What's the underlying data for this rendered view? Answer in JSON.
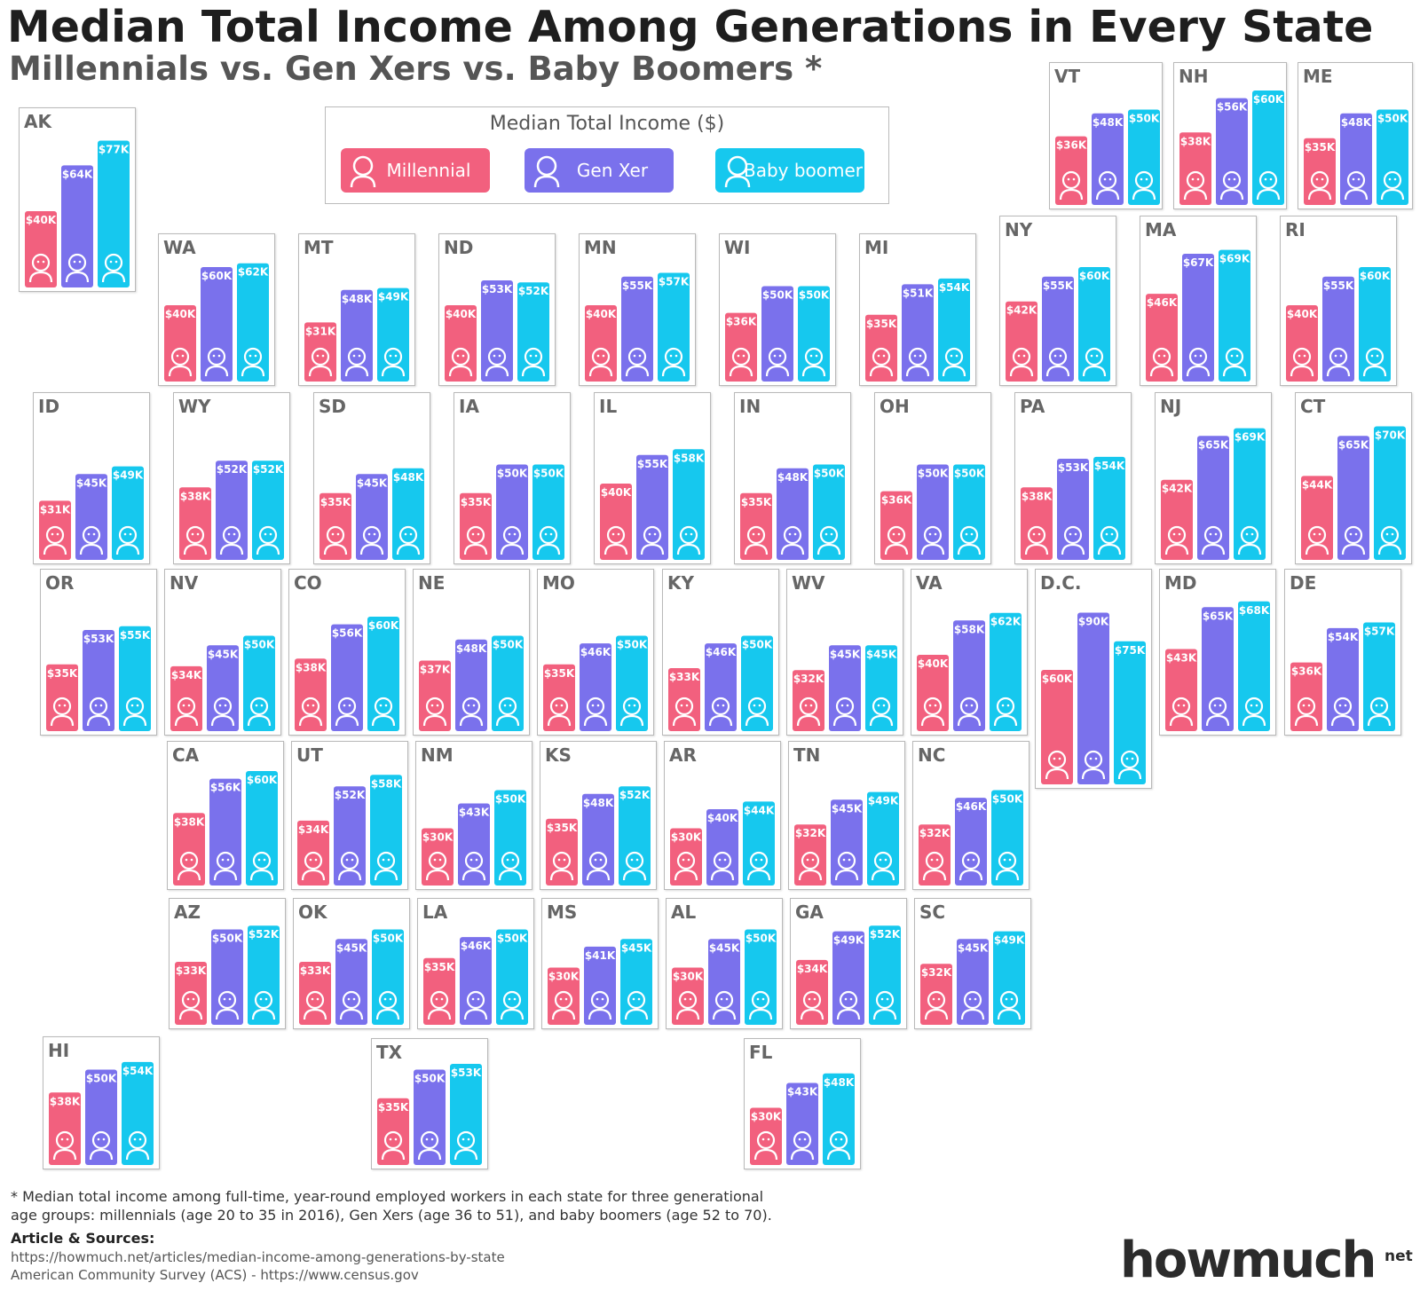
{
  "header": {
    "title": "Median Total Income Among Generations in Every State",
    "subtitle": "Millennials vs. Gen Xers vs. Baby Boomers *"
  },
  "legend": {
    "title": "Median Total Income ($)",
    "millennial": "Millennial",
    "genx": "Gen Xer",
    "boomer": "Baby boomer"
  },
  "colors": {
    "millennial": "#f2607e",
    "genx": "#7a71ec",
    "boomer": "#16c8ee",
    "tile_label": "#666666"
  },
  "chart_data": {
    "type": "bar",
    "title": "Median Total Income Among Generations in Every State",
    "subtitle": "Millennials vs. Gen Xers vs. Baby Boomers *",
    "series_names": [
      "Millennial",
      "Gen Xer",
      "Baby boomer"
    ],
    "unit": "$K",
    "grid": false,
    "legend_placement": "top",
    "states": [
      {
        "state": "AK",
        "values": [
          40,
          64,
          77
        ],
        "labels": [
          "$40K",
          "$64K",
          "$77K"
        ]
      },
      {
        "state": "VT",
        "values": [
          36,
          48,
          50
        ],
        "labels": [
          "$36K",
          "$48K",
          "$50K"
        ]
      },
      {
        "state": "NH",
        "values": [
          38,
          56,
          60
        ],
        "labels": [
          "$38K",
          "$56K",
          "$60K"
        ]
      },
      {
        "state": "ME",
        "values": [
          35,
          48,
          50
        ],
        "labels": [
          "$35K",
          "$48K",
          "$50K"
        ]
      },
      {
        "state": "WA",
        "values": [
          40,
          60,
          62
        ],
        "labels": [
          "$40K",
          "$60K",
          "$62K"
        ]
      },
      {
        "state": "MT",
        "values": [
          31,
          48,
          49
        ],
        "labels": [
          "$31K",
          "$48K",
          "$49K"
        ]
      },
      {
        "state": "ND",
        "values": [
          40,
          53,
          52
        ],
        "labels": [
          "$40K",
          "$53K",
          "$52K"
        ]
      },
      {
        "state": "MN",
        "values": [
          40,
          55,
          57
        ],
        "labels": [
          "$40K",
          "$55K",
          "$57K"
        ]
      },
      {
        "state": "WI",
        "values": [
          36,
          50,
          50
        ],
        "labels": [
          "$36K",
          "$50K",
          "$50K"
        ]
      },
      {
        "state": "MI",
        "values": [
          35,
          51,
          54
        ],
        "labels": [
          "$35K",
          "$51K",
          "$54K"
        ]
      },
      {
        "state": "NY",
        "values": [
          42,
          55,
          60
        ],
        "labels": [
          "$42K",
          "$55K",
          "$60K"
        ]
      },
      {
        "state": "MA",
        "values": [
          46,
          67,
          69
        ],
        "labels": [
          "$46K",
          "$67K",
          "$69K"
        ]
      },
      {
        "state": "RI",
        "values": [
          40,
          55,
          60
        ],
        "labels": [
          "$40K",
          "$55K",
          "$60K"
        ]
      },
      {
        "state": "ID",
        "values": [
          31,
          45,
          49
        ],
        "labels": [
          "$31K",
          "$45K",
          "$49K"
        ]
      },
      {
        "state": "WY",
        "values": [
          38,
          52,
          52
        ],
        "labels": [
          "$38K",
          "$52K",
          "$52K"
        ]
      },
      {
        "state": "SD",
        "values": [
          35,
          45,
          48
        ],
        "labels": [
          "$35K",
          "$45K",
          "$48K"
        ]
      },
      {
        "state": "IA",
        "values": [
          35,
          50,
          50
        ],
        "labels": [
          "$35K",
          "$50K",
          "$50K"
        ]
      },
      {
        "state": "IL",
        "values": [
          40,
          55,
          58
        ],
        "labels": [
          "$40K",
          "$55K",
          "$58K"
        ]
      },
      {
        "state": "IN",
        "values": [
          35,
          48,
          50
        ],
        "labels": [
          "$35K",
          "$48K",
          "$50K"
        ]
      },
      {
        "state": "OH",
        "values": [
          36,
          50,
          50
        ],
        "labels": [
          "$36K",
          "$50K",
          "$50K"
        ]
      },
      {
        "state": "PA",
        "values": [
          38,
          53,
          54
        ],
        "labels": [
          "$38K",
          "$53K",
          "$54K"
        ]
      },
      {
        "state": "NJ",
        "values": [
          42,
          65,
          69
        ],
        "labels": [
          "$42K",
          "$65K",
          "$69K"
        ]
      },
      {
        "state": "CT",
        "values": [
          44,
          65,
          70
        ],
        "labels": [
          "$44K",
          "$65K",
          "$70K"
        ]
      },
      {
        "state": "OR",
        "values": [
          35,
          53,
          55
        ],
        "labels": [
          "$35K",
          "$53K",
          "$55K"
        ]
      },
      {
        "state": "NV",
        "values": [
          34,
          45,
          50
        ],
        "labels": [
          "$34K",
          "$45K",
          "$50K"
        ]
      },
      {
        "state": "CO",
        "values": [
          38,
          56,
          60
        ],
        "labels": [
          "$38K",
          "$56K",
          "$60K"
        ]
      },
      {
        "state": "NE",
        "values": [
          37,
          48,
          50
        ],
        "labels": [
          "$37K",
          "$48K",
          "$50K"
        ]
      },
      {
        "state": "MO",
        "values": [
          35,
          46,
          50
        ],
        "labels": [
          "$35K",
          "$46K",
          "$50K"
        ]
      },
      {
        "state": "KY",
        "values": [
          33,
          46,
          50
        ],
        "labels": [
          "$33K",
          "$46K",
          "$50K"
        ]
      },
      {
        "state": "WV",
        "values": [
          32,
          45,
          45
        ],
        "labels": [
          "$32K",
          "$45K",
          "$45K"
        ]
      },
      {
        "state": "VA",
        "values": [
          40,
          58,
          62
        ],
        "labels": [
          "$40K",
          "$58K",
          "$62K"
        ]
      },
      {
        "state": "D.C.",
        "values": [
          60,
          90,
          75
        ],
        "labels": [
          "$60K",
          "$90K",
          "$75K"
        ]
      },
      {
        "state": "MD",
        "values": [
          43,
          65,
          68
        ],
        "labels": [
          "$43K",
          "$65K",
          "$68K"
        ]
      },
      {
        "state": "DE",
        "values": [
          36,
          54,
          57
        ],
        "labels": [
          "$36K",
          "$54K",
          "$57K"
        ]
      },
      {
        "state": "CA",
        "values": [
          38,
          56,
          60
        ],
        "labels": [
          "$38K",
          "$56K",
          "$60K"
        ]
      },
      {
        "state": "UT",
        "values": [
          34,
          52,
          58
        ],
        "labels": [
          "$34K",
          "$52K",
          "$58K"
        ]
      },
      {
        "state": "NM",
        "values": [
          30,
          43,
          50
        ],
        "labels": [
          "$30K",
          "$43K",
          "$50K"
        ]
      },
      {
        "state": "KS",
        "values": [
          35,
          48,
          52
        ],
        "labels": [
          "$35K",
          "$48K",
          "$52K"
        ]
      },
      {
        "state": "AR",
        "values": [
          30,
          40,
          44
        ],
        "labels": [
          "$30K",
          "$40K",
          "$44K"
        ]
      },
      {
        "state": "TN",
        "values": [
          32,
          45,
          49
        ],
        "labels": [
          "$32K",
          "$45K",
          "$49K"
        ]
      },
      {
        "state": "NC",
        "values": [
          32,
          46,
          50
        ],
        "labels": [
          "$32K",
          "$46K",
          "$50K"
        ]
      },
      {
        "state": "AZ",
        "values": [
          33,
          50,
          52
        ],
        "labels": [
          "$33K",
          "$50K",
          "$52K"
        ]
      },
      {
        "state": "OK",
        "values": [
          33,
          45,
          50
        ],
        "labels": [
          "$33K",
          "$45K",
          "$50K"
        ]
      },
      {
        "state": "LA",
        "values": [
          35,
          46,
          50
        ],
        "labels": [
          "$35K",
          "$46K",
          "$50K"
        ]
      },
      {
        "state": "MS",
        "values": [
          30,
          41,
          45
        ],
        "labels": [
          "$30K",
          "$41K",
          "$45K"
        ]
      },
      {
        "state": "AL",
        "values": [
          30,
          45,
          50
        ],
        "labels": [
          "$30K",
          "$45K",
          "$50K"
        ]
      },
      {
        "state": "GA",
        "values": [
          34,
          49,
          52
        ],
        "labels": [
          "$34K",
          "$49K",
          "$52K"
        ]
      },
      {
        "state": "SC",
        "values": [
          32,
          45,
          49
        ],
        "labels": [
          "$32K",
          "$45K",
          "$49K"
        ]
      },
      {
        "state": "HI",
        "values": [
          38,
          50,
          54
        ],
        "labels": [
          "$38K",
          "$50K",
          "$54K"
        ]
      },
      {
        "state": "TX",
        "values": [
          35,
          50,
          53
        ],
        "labels": [
          "$35K",
          "$50K",
          "$53K"
        ]
      },
      {
        "state": "FL",
        "values": [
          30,
          43,
          48
        ],
        "labels": [
          "$30K",
          "$43K",
          "$48K"
        ]
      }
    ]
  },
  "footer": {
    "footnote_line1": "* Median total income among full-time, year-round employed workers in each state for three generational",
    "footnote_line2": "age groups: millennials (age 20 to 35 in 2016), Gen Xers (age 36 to 51), and baby boomers (age 52 to 70).",
    "sources_heading": "Article & Sources:",
    "source_1": "https://howmuch.net/articles/median-income-among-generations-by-state",
    "source_2": "American Community Survey (ACS) - https://www.census.gov",
    "logo_how": "how",
    "logo_much": "much",
    "logo_net": "net"
  }
}
